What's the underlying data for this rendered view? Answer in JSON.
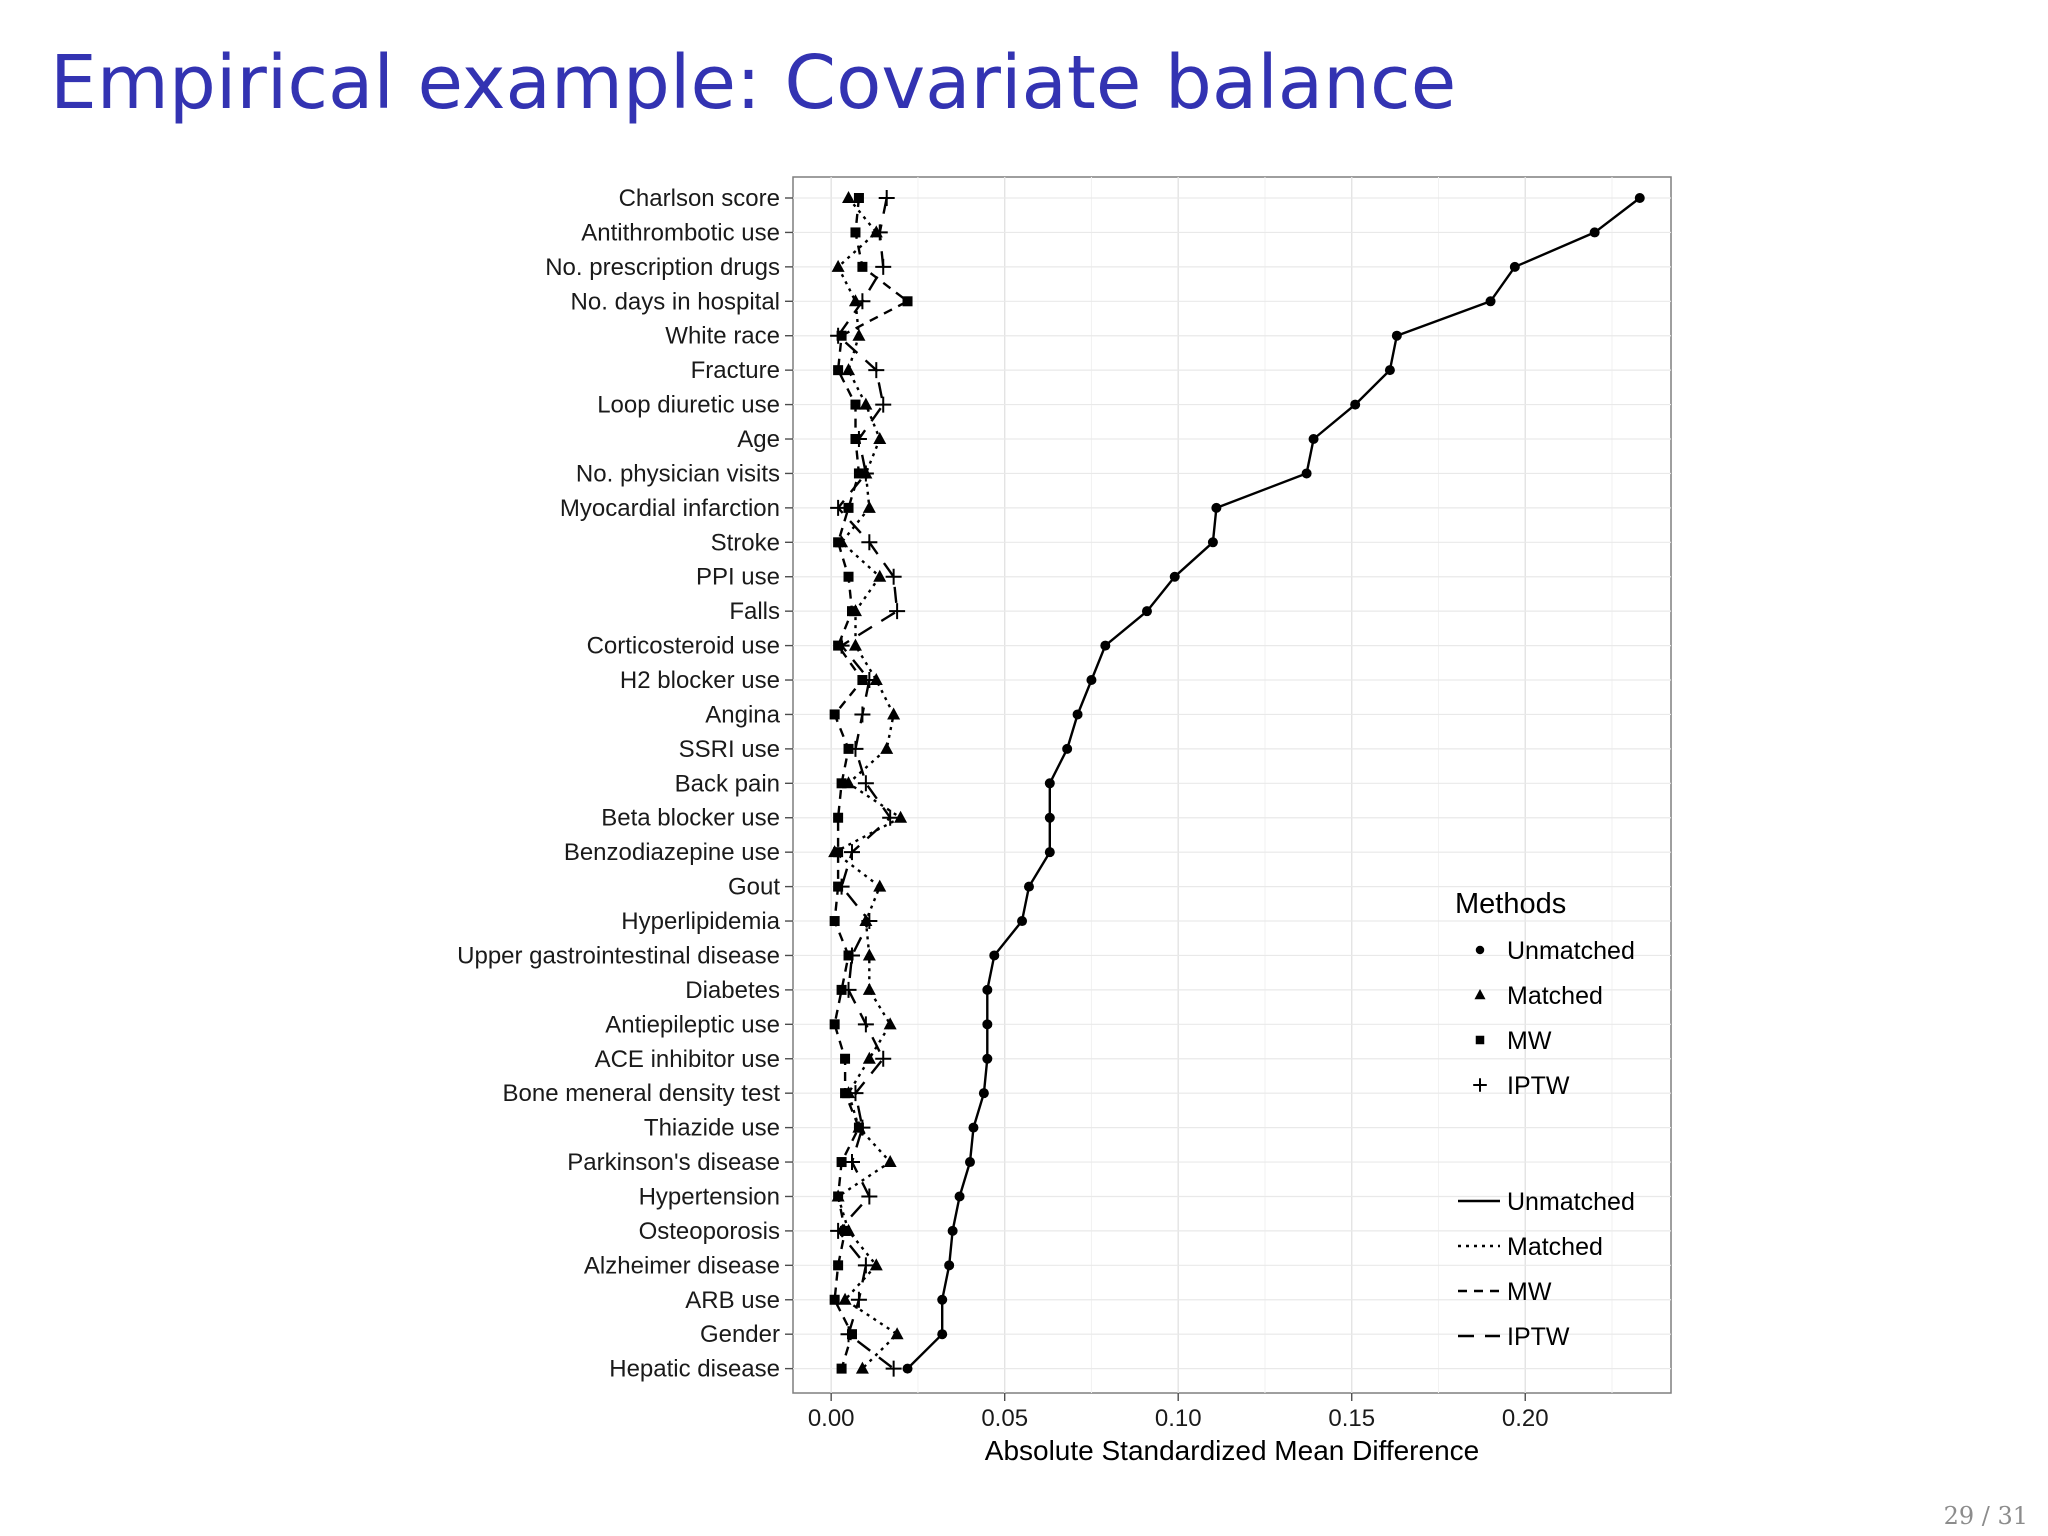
{
  "slide": {
    "title": "Empirical example: Covariate balance",
    "page_number": "29 / 31"
  },
  "chart_data": {
    "type": "scatter",
    "title": "",
    "xlabel": "Absolute Standardized Mean Difference",
    "ylabel": "",
    "xlim": [
      -0.011,
      0.242
    ],
    "x_ticks": [
      0.0,
      0.05,
      0.1,
      0.15,
      0.2
    ],
    "x_tick_labels": [
      "0.00",
      "0.05",
      "0.10",
      "0.15",
      "0.20"
    ],
    "grid": true,
    "legend_position": "right",
    "legend_title": "Methods",
    "categories": [
      "Charlson score",
      "Antithrombotic use",
      "No. prescription drugs",
      "No. days in hospital",
      "White race",
      "Fracture",
      "Loop diuretic use",
      "Age",
      "No. physician visits",
      "Myocardial infarction",
      "Stroke",
      "PPI use",
      "Falls",
      "Corticosteroid use",
      "H2 blocker use",
      "Angina",
      "SSRI use",
      "Back pain",
      "Beta blocker use",
      "Benzodiazepine use",
      "Gout",
      "Hyperlipidemia",
      "Upper gastrointestinal disease",
      "Diabetes",
      "Antiepileptic use",
      "ACE inhibitor use",
      "Bone meneral density test",
      "Thiazide use",
      "Parkinson's disease",
      "Hypertension",
      "Osteoporosis",
      "Alzheimer disease",
      "ARB use",
      "Gender",
      "Hepatic disease"
    ],
    "series": [
      {
        "name": "Unmatched",
        "marker": "circle",
        "line": "solid",
        "values": [
          0.233,
          0.22,
          0.197,
          0.19,
          0.163,
          0.161,
          0.151,
          0.139,
          0.137,
          0.111,
          0.11,
          0.099,
          0.091,
          0.079,
          0.075,
          0.071,
          0.068,
          0.063,
          0.063,
          0.063,
          0.057,
          0.055,
          0.047,
          0.045,
          0.045,
          0.045,
          0.044,
          0.041,
          0.04,
          0.037,
          0.035,
          0.034,
          0.032,
          0.032,
          0.022
        ]
      },
      {
        "name": "Matched",
        "marker": "triangle",
        "line": "dotted",
        "values": [
          0.005,
          0.013,
          0.002,
          0.007,
          0.008,
          0.005,
          0.01,
          0.014,
          0.01,
          0.011,
          0.003,
          0.014,
          0.007,
          0.007,
          0.013,
          0.018,
          0.016,
          0.005,
          0.02,
          0.001,
          0.014,
          0.01,
          0.011,
          0.011,
          0.017,
          0.011,
          0.005,
          0.008,
          0.017,
          0.002,
          0.005,
          0.013,
          0.004,
          0.019,
          0.009
        ]
      },
      {
        "name": "MW",
        "marker": "square",
        "line": "dashed",
        "values": [
          0.008,
          0.007,
          0.009,
          0.022,
          0.003,
          0.002,
          0.007,
          0.007,
          0.008,
          0.005,
          0.002,
          0.005,
          0.006,
          0.002,
          0.009,
          0.001,
          0.005,
          0.003,
          0.002,
          0.002,
          0.002,
          0.001,
          0.005,
          0.003,
          0.001,
          0.004,
          0.004,
          0.008,
          0.003,
          0.002,
          0.004,
          0.002,
          0.001,
          0.006,
          0.003
        ]
      },
      {
        "name": "IPTW",
        "marker": "plus",
        "line": "longdash",
        "values": [
          0.016,
          0.014,
          0.015,
          0.009,
          0.002,
          0.013,
          0.015,
          0.008,
          0.01,
          0.002,
          0.011,
          0.018,
          0.019,
          0.003,
          0.011,
          0.009,
          0.007,
          0.01,
          0.017,
          0.006,
          0.003,
          0.011,
          0.006,
          0.005,
          0.01,
          0.015,
          0.007,
          0.009,
          0.006,
          0.011,
          0.002,
          0.01,
          0.008,
          0.005,
          0.018
        ]
      }
    ]
  }
}
